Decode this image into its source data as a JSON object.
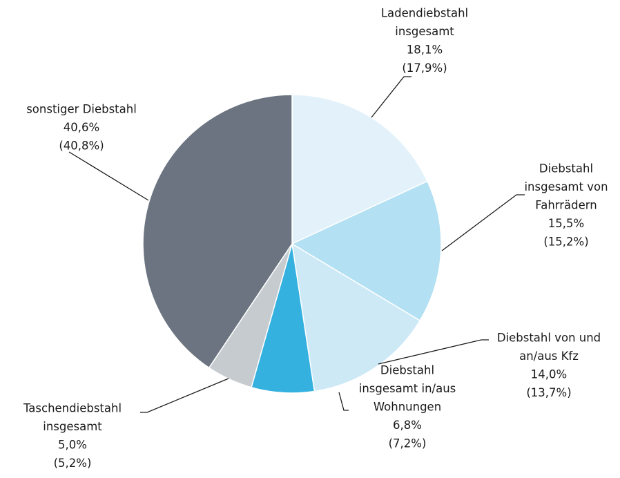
{
  "chart_data": {
    "type": "pie",
    "categories": [
      [
        "Ladendiebstahl",
        "insgesamt"
      ],
      [
        "Diebstahl",
        "insgesamt von",
        "Fahrrädern"
      ],
      [
        "Diebstahl von und",
        "an/aus Kfz"
      ],
      [
        "Diebstahl",
        "insgesamt in/aus",
        "Wohnungen"
      ],
      [
        "Taschendiebstahl",
        "insgesamt"
      ],
      [
        "sonstiger Diebstahl"
      ]
    ],
    "colors": [
      "#e3f2fa",
      "#b3e0f2",
      "#cde9f6",
      "#35b1e0",
      "#c6cbd0",
      "#6b7480"
    ],
    "series": [
      {
        "values": [
          18.1,
          15.5,
          14.0,
          6.8,
          5.0,
          40.6
        ],
        "value_labels": [
          "18,1%",
          "15,5%",
          "14,0%",
          "6,8%",
          "5,0%",
          "40,6%"
        ]
      },
      {
        "values": [
          17.9,
          15.2,
          13.7,
          7.2,
          5.2,
          40.8
        ],
        "value_labels": [
          "(17,9%)",
          "(15,2%)",
          "(13,7%)",
          "(7,2%)",
          "(5,2%)",
          "(40,8%)"
        ]
      }
    ]
  }
}
